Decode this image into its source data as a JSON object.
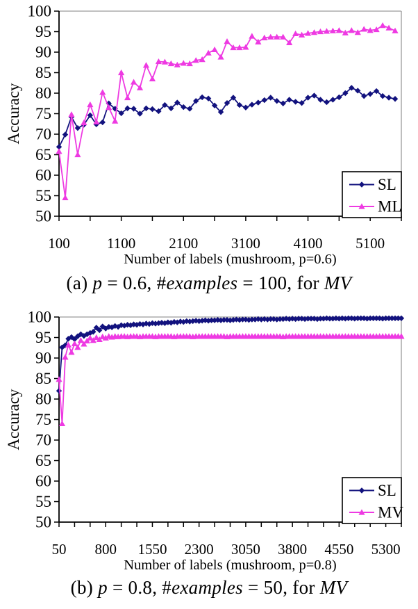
{
  "page": {
    "background": "#ffffff"
  },
  "colors": {
    "sl_navy": "#12127E",
    "ml_magenta": "#EE3AE2",
    "axis_black": "#000000",
    "border_gray": "#9A9A9A",
    "legend_border": "#000000",
    "text": "#000000"
  },
  "chart_data": [
    {
      "id": "a",
      "type": "line",
      "title": "",
      "xlabel": "Number of labels (mushroom, p=0.6)",
      "ylabel": "Accuracy",
      "xlim": [
        100,
        5600
      ],
      "ylim": [
        50,
        100
      ],
      "ytick_step": 5,
      "yticks": [
        50,
        55,
        60,
        65,
        70,
        75,
        80,
        85,
        90,
        95,
        100
      ],
      "xticks_labeled": [
        100,
        1100,
        2100,
        3100,
        4100,
        5100
      ],
      "xtick_minor_step": 500,
      "x_start": 100,
      "x_step": 100,
      "grid": false,
      "legend_position": "bottom-right-inside",
      "series": [
        {
          "name": "SL",
          "color": "#12127E",
          "marker": "diamond",
          "values": [
            66.9,
            69.9,
            74.2,
            71.5,
            72.3,
            74.6,
            72.4,
            72.9,
            77.5,
            76.2,
            75.1,
            76.3,
            76.2,
            75.0,
            76.3,
            76.1,
            75.6,
            77.1,
            76.3,
            77.7,
            76.6,
            76.2,
            78.1,
            79.0,
            78.7,
            77.0,
            75.4,
            77.6,
            78.9,
            77.1,
            76.5,
            77.2,
            77.7,
            78.3,
            78.9,
            78.1,
            77.5,
            78.4,
            77.9,
            77.6,
            78.9,
            79.4,
            78.4,
            77.8,
            78.4,
            79.0,
            80.0,
            81.3,
            80.6,
            79.3,
            79.8,
            80.5,
            79.3,
            78.9,
            78.6
          ]
        },
        {
          "name": "ML",
          "color": "#EE3AE2",
          "marker": "triangle-up",
          "values": [
            65.8,
            54.5,
            74.8,
            65.0,
            72.8,
            77.2,
            73.0,
            80.2,
            76.5,
            73.2,
            85.0,
            78.9,
            82.7,
            81.3,
            86.8,
            83.5,
            87.7,
            87.6,
            87.2,
            86.9,
            87.3,
            87.2,
            88.0,
            88.2,
            89.8,
            90.6,
            88.8,
            92.6,
            91.1,
            91.1,
            91.2,
            93.9,
            92.5,
            93.5,
            93.7,
            93.7,
            93.7,
            92.3,
            94.5,
            94.2,
            94.6,
            94.8,
            95.0,
            95.1,
            95.2,
            95.3,
            94.7,
            95.3,
            94.8,
            95.6,
            95.3,
            95.5,
            96.5,
            95.9,
            95.2
          ]
        }
      ],
      "caption_parts": [
        {
          "text": "(a) ",
          "italic": false
        },
        {
          "text": "p",
          "italic": true
        },
        {
          "text": " = 0.6, #",
          "italic": false
        },
        {
          "text": "examples",
          "italic": true
        },
        {
          "text": " = 100, for ",
          "italic": false
        },
        {
          "text": "MV",
          "italic": true
        }
      ]
    },
    {
      "id": "b",
      "type": "line",
      "title": "",
      "xlabel": "Number of labels (mushroom, p=0.8)",
      "ylabel": "Accuracy",
      "xlim": [
        50,
        5550
      ],
      "ylim": [
        50,
        100
      ],
      "ytick_step": 5,
      "yticks": [
        50,
        55,
        60,
        65,
        70,
        75,
        80,
        85,
        90,
        95,
        100
      ],
      "xticks_labeled": [
        50,
        800,
        1550,
        2300,
        3050,
        3800,
        4550,
        5300
      ],
      "xtick_minor_step": 250,
      "x_start": 50,
      "x_step": 50,
      "grid": false,
      "legend_position": "bottom-right-inside",
      "series": [
        {
          "name": "SL",
          "color": "#12127E",
          "marker": "diamond",
          "values": [
            82.0,
            92.6,
            93.1,
            94.7,
            95.1,
            94.6,
            95.3,
            95.8,
            95.4,
            95.8,
            96.1,
            96.4,
            97.4,
            96.8,
            97.7,
            97.2,
            97.6,
            97.5,
            97.8,
            97.6,
            98.0,
            97.9,
            98.1,
            98.0,
            98.2,
            98.1,
            98.3,
            98.2,
            98.4,
            98.3,
            98.5,
            98.4,
            98.5,
            98.6,
            98.5,
            98.7,
            98.6,
            98.8,
            98.7,
            98.9,
            98.8,
            99.0,
            98.9,
            99.0,
            99.1,
            99.0,
            99.1,
            99.2,
            99.1,
            99.2,
            99.2,
            99.3,
            99.2,
            99.3,
            99.3,
            99.2,
            99.3,
            99.4,
            99.3,
            99.4,
            99.4,
            99.3,
            99.4,
            99.4,
            99.5,
            99.4,
            99.5,
            99.4,
            99.5,
            99.5,
            99.4,
            99.5,
            99.5,
            99.6,
            99.5,
            99.6,
            99.5,
            99.6,
            99.6,
            99.5,
            99.6,
            99.6,
            99.6,
            99.5,
            99.6,
            99.6,
            99.7,
            99.6,
            99.6,
            99.7,
            99.6,
            99.7,
            99.6,
            99.7,
            99.7,
            99.6,
            99.7,
            99.7,
            99.7,
            99.6,
            99.7,
            99.7,
            99.7,
            99.7,
            99.6,
            99.7,
            99.7,
            99.7,
            99.7,
            99.7,
            99.7
          ]
        },
        {
          "name": "MV",
          "color": "#EE3AE2",
          "marker": "triangle-up",
          "values": [
            84.8,
            74.0,
            90.2,
            93.2,
            91.4,
            93.5,
            92.6,
            94.3,
            93.4,
            94.2,
            94.9,
            94.3,
            95.0,
            94.5,
            95.2,
            94.9,
            95.3,
            95.1,
            95.3,
            95.2,
            95.3,
            95.3,
            95.2,
            95.3,
            95.3,
            95.3,
            95.2,
            95.3,
            95.3,
            95.3,
            95.3,
            95.2,
            95.3,
            95.3,
            95.3,
            95.3,
            95.3,
            95.2,
            95.3,
            95.3,
            95.3,
            95.3,
            95.3,
            95.2,
            95.3,
            95.3,
            95.3,
            95.3,
            95.3,
            95.3,
            95.3,
            95.3,
            95.3,
            95.3,
            95.2,
            95.3,
            95.3,
            95.3,
            95.3,
            95.3,
            95.3,
            95.3,
            95.3,
            95.3,
            95.3,
            95.3,
            95.3,
            95.3,
            95.3,
            95.3,
            95.3,
            95.3,
            95.2,
            95.3,
            95.3,
            95.3,
            95.3,
            95.3,
            95.3,
            95.3,
            95.3,
            95.3,
            95.3,
            95.3,
            95.3,
            95.3,
            95.3,
            95.3,
            95.3,
            95.3,
            95.3,
            95.3,
            95.3,
            95.3,
            95.3,
            95.3,
            95.3,
            95.3,
            95.3,
            95.3,
            95.3,
            95.3,
            95.3,
            95.3,
            95.3,
            95.3,
            95.3,
            95.3,
            95.3,
            95.3,
            95.3
          ]
        }
      ],
      "caption_parts": [
        {
          "text": "(b) ",
          "italic": false
        },
        {
          "text": "p",
          "italic": true
        },
        {
          "text": " = 0.8, #",
          "italic": false
        },
        {
          "text": "examples",
          "italic": true
        },
        {
          "text": " = 50, for ",
          "italic": false
        },
        {
          "text": "MV",
          "italic": true
        }
      ]
    }
  ]
}
